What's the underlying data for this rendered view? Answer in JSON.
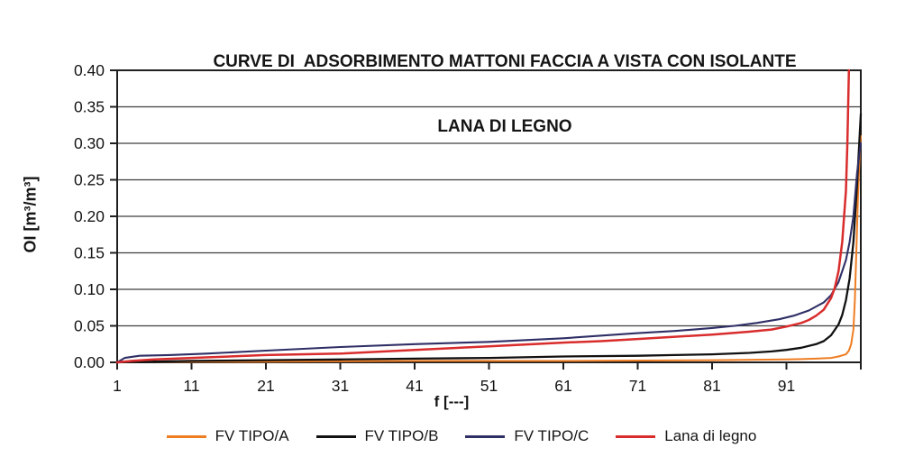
{
  "chart_data": {
    "type": "line",
    "title": "CURVE DI  ADSORBIMENTO MATTONI FACCIA A VISTA CON ISOLANTE LANA DI LEGNO",
    "title_line1": "CURVE DI  ADSORBIMENTO MATTONI FACCIA A VISTA CON ISOLANTE",
    "title_line2": "LANA DI LEGNO",
    "xlabel": "f [---]",
    "ylabel": "OI [m³/m³]",
    "xlim": [
      1,
      101
    ],
    "ylim": [
      0,
      0.4
    ],
    "x_ticks": [
      1,
      11,
      21,
      31,
      41,
      51,
      61,
      71,
      81,
      91
    ],
    "x_axis_end_tick": 101,
    "y_ticks": [
      0,
      0.05,
      0.1,
      0.15,
      0.2,
      0.25,
      0.3,
      0.35,
      0.4
    ],
    "y_tick_labels": [
      "0.00",
      "0.05",
      "0.10",
      "0.15",
      "0.20",
      "0.25",
      "0.30",
      "0.35",
      "0.40"
    ],
    "grid": "horizontal",
    "legend_position": "bottom",
    "series": [
      {
        "name": "FV TIPO/A",
        "color": "#EF7D22",
        "width": 2,
        "points": [
          [
            1,
            0
          ],
          [
            6,
            0.001
          ],
          [
            21,
            0.001
          ],
          [
            41,
            0.002
          ],
          [
            61,
            0.002
          ],
          [
            81,
            0.003
          ],
          [
            91,
            0.004
          ],
          [
            95,
            0.005
          ],
          [
            97,
            0.006
          ],
          [
            98,
            0.008
          ],
          [
            99,
            0.011
          ],
          [
            99.4,
            0.016
          ],
          [
            99.7,
            0.025
          ],
          [
            100,
            0.045
          ],
          [
            100.2,
            0.085
          ],
          [
            100.4,
            0.15
          ],
          [
            100.6,
            0.22
          ],
          [
            100.8,
            0.275
          ],
          [
            101,
            0.31
          ]
        ]
      },
      {
        "name": "FV TIPO/B",
        "color": "#111111",
        "width": 2.3,
        "points": [
          [
            1,
            0
          ],
          [
            6,
            0.001
          ],
          [
            11,
            0.002
          ],
          [
            21,
            0.003
          ],
          [
            31,
            0.004
          ],
          [
            41,
            0.005
          ],
          [
            51,
            0.006
          ],
          [
            61,
            0.008
          ],
          [
            71,
            0.009
          ],
          [
            76,
            0.01
          ],
          [
            81,
            0.011
          ],
          [
            86,
            0.013
          ],
          [
            89,
            0.015
          ],
          [
            91,
            0.017
          ],
          [
            93,
            0.02
          ],
          [
            95,
            0.025
          ],
          [
            96,
            0.029
          ],
          [
            97,
            0.037
          ],
          [
            98,
            0.052
          ],
          [
            98.5,
            0.065
          ],
          [
            99,
            0.085
          ],
          [
            99.5,
            0.115
          ],
          [
            100,
            0.165
          ],
          [
            100.5,
            0.245
          ],
          [
            101,
            0.34
          ]
        ]
      },
      {
        "name": "FV TIPO/C",
        "color": "#2F2F66",
        "width": 2.1,
        "points": [
          [
            1,
            0
          ],
          [
            2,
            0.006
          ],
          [
            4,
            0.009
          ],
          [
            8,
            0.01
          ],
          [
            13,
            0.012
          ],
          [
            21,
            0.016
          ],
          [
            31,
            0.021
          ],
          [
            41,
            0.025
          ],
          [
            51,
            0.028
          ],
          [
            61,
            0.033
          ],
          [
            71,
            0.04
          ],
          [
            76,
            0.043
          ],
          [
            81,
            0.047
          ],
          [
            84,
            0.05
          ],
          [
            87,
            0.054
          ],
          [
            90,
            0.059
          ],
          [
            92,
            0.064
          ],
          [
            94,
            0.071
          ],
          [
            96,
            0.082
          ],
          [
            97,
            0.092
          ],
          [
            98,
            0.11
          ],
          [
            99,
            0.14
          ],
          [
            99.5,
            0.165
          ],
          [
            100,
            0.2
          ],
          [
            100.5,
            0.26
          ],
          [
            101,
            0.3
          ]
        ]
      },
      {
        "name": "Lana di legno",
        "color": "#D92C2C",
        "width": 2.5,
        "points": [
          [
            1,
            0
          ],
          [
            3,
            0.002
          ],
          [
            6,
            0.004
          ],
          [
            11,
            0.006
          ],
          [
            21,
            0.01
          ],
          [
            31,
            0.012
          ],
          [
            41,
            0.017
          ],
          [
            51,
            0.022
          ],
          [
            61,
            0.027
          ],
          [
            66,
            0.029
          ],
          [
            71,
            0.032
          ],
          [
            76,
            0.035
          ],
          [
            81,
            0.038
          ],
          [
            86,
            0.042
          ],
          [
            89,
            0.045
          ],
          [
            91,
            0.049
          ],
          [
            93,
            0.054
          ],
          [
            94,
            0.058
          ],
          [
            95,
            0.064
          ],
          [
            96,
            0.072
          ],
          [
            97,
            0.088
          ],
          [
            97.5,
            0.102
          ],
          [
            98,
            0.125
          ],
          [
            98.5,
            0.165
          ],
          [
            99,
            0.235
          ],
          [
            99.2,
            0.3
          ],
          [
            99.4,
            0.4
          ]
        ]
      }
    ]
  },
  "colors": {
    "background": "#ffffff",
    "grid": "#3f3f3f",
    "axis_border": "#1f1f1f",
    "text": "#151515"
  }
}
